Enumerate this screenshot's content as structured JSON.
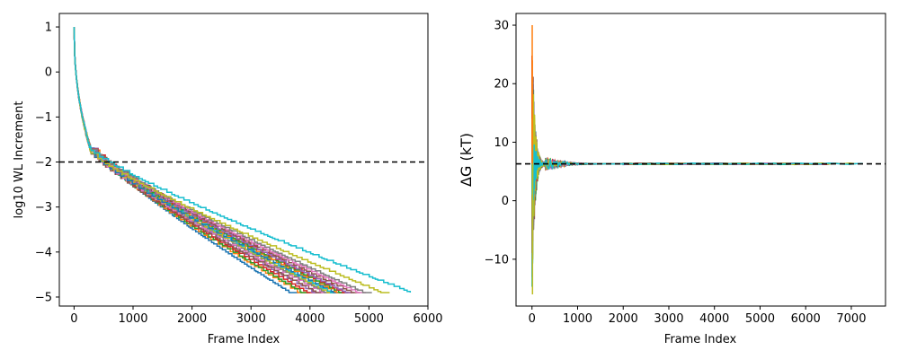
{
  "chart_data": [
    {
      "type": "line",
      "title": "",
      "xlabel": "Frame Index",
      "ylabel": "log10 WL Increment",
      "xlim": [
        -250,
        6000
      ],
      "ylim": [
        -5.2,
        1.3
      ],
      "xticks": [
        0,
        1000,
        2000,
        3000,
        4000,
        5000,
        6000
      ],
      "yticks": [
        1,
        0,
        -1,
        -2,
        -3,
        -4,
        -5
      ],
      "grid": false,
      "legend": "none",
      "reference_line": {
        "y": -2,
        "style": "dashed",
        "color": "#000000"
      },
      "series_count": 20,
      "series_end_frames": [
        3650,
        3800,
        3850,
        3950,
        4050,
        4100,
        4200,
        4250,
        4300,
        4350,
        4400,
        4450,
        4500,
        4550,
        4600,
        4700,
        4800,
        4900,
        5200,
        5700
      ],
      "curve_start": {
        "x": 0,
        "y": 1
      },
      "curve_end_y": -4.9,
      "crossing_of_reference_range": [
        700,
        1000
      ]
    },
    {
      "type": "line",
      "title": "",
      "xlabel": "Frame Index",
      "ylabel": "ΔG (kT)",
      "xlim": [
        -350,
        7750
      ],
      "ylim": [
        -18,
        32
      ],
      "xticks": [
        0,
        1000,
        2000,
        3000,
        4000,
        5000,
        6000,
        7000
      ],
      "yticks": [
        30,
        20,
        10,
        0,
        -10
      ],
      "grid": false,
      "legend": "none",
      "reference_line": {
        "y": 6.3,
        "style": "dashed",
        "color": "#000000"
      },
      "series_count": 20,
      "converged_value": 6.3,
      "initial_range": [
        -16,
        30
      ],
      "convergence_frame": 2000,
      "series_end_frames": [
        4300,
        4600,
        4900,
        5100,
        5300,
        5500,
        5700,
        5900,
        6000,
        6100,
        6200,
        6300,
        6400,
        6500,
        6600,
        6700,
        6800,
        6900,
        7100,
        7300
      ]
    }
  ],
  "colors": [
    "#1f77b4",
    "#ff7f0e",
    "#2ca02c",
    "#d62728",
    "#9467bd",
    "#8c564b",
    "#e377c2",
    "#7f7f7f",
    "#bcbd22",
    "#17becf"
  ]
}
